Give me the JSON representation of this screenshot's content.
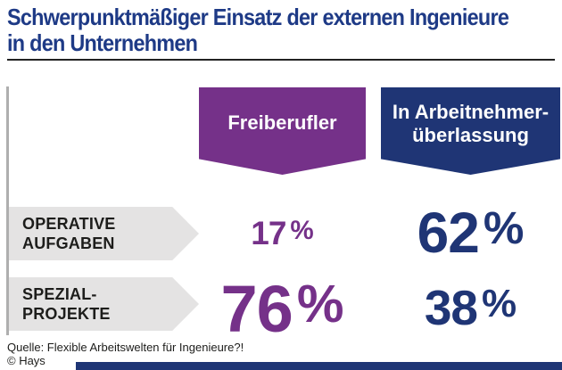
{
  "header": {
    "title_line1": "Schwerpunktmäßiger Einsatz der externen Ingenieure",
    "title_line2": "in den Unternehmen"
  },
  "columns": [
    {
      "label": "Freiberufler",
      "color": "#753189"
    },
    {
      "label_line1": "In Arbeitnehmer-",
      "label_line2": "überlassung",
      "color": "#1F3575"
    }
  ],
  "rows": [
    {
      "label_line1": "OPERATIVE",
      "label_line2": "AUFGABEN",
      "freiberufler": {
        "number": "17",
        "suffix": "%"
      },
      "arbeitnehmerueberlassung": {
        "number": "62",
        "suffix": "%"
      }
    },
    {
      "label_line1": "SPEZIAL-",
      "label_line2": "PROJEKTE",
      "freiberufler": {
        "number": "76",
        "suffix": "%"
      },
      "arbeitnehmerueberlassung": {
        "number": "38",
        "suffix": "%"
      }
    }
  ],
  "footer": {
    "source": "Quelle: Flexible Arbeitswelten für Ingenieure?!",
    "copyright": "© Hays"
  },
  "colors": {
    "title_blue": "#1E3A86",
    "purple": "#753189",
    "navy": "#1F3575",
    "arrow_gray": "#E4E3E3",
    "label_dark": "#1D1D1B",
    "rule_dark": "#222222",
    "line_gray": "#AFAFAF"
  },
  "chart_data": {
    "type": "table",
    "title": "Schwerpunktmäßiger Einsatz der externen Ingenieure in den Unternehmen",
    "categories": [
      "Operative Aufgaben",
      "Spezial-Projekte"
    ],
    "series": [
      {
        "name": "Freiberufler",
        "values": [
          17,
          76
        ],
        "color": "#753189"
      },
      {
        "name": "In Arbeitnehmerüberlassung",
        "values": [
          62,
          38
        ],
        "color": "#1F3575"
      }
    ],
    "unit": "%",
    "layout_hints": "two-column comparison infographic; number font size scales with value; legend as banner badges above columns",
    "source": "Quelle: Flexible Arbeitswelten für Ingenieure?!",
    "copyright": "© Hays"
  }
}
